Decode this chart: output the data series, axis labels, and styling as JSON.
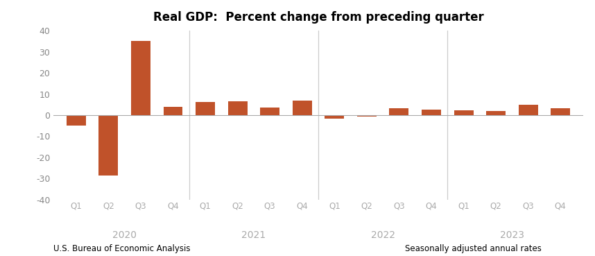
{
  "title": "Real GDP:  Percent change from preceding quarter",
  "values": [
    -5.0,
    -28.7,
    35.3,
    4.0,
    6.3,
    6.7,
    3.5,
    7.0,
    -1.6,
    -0.6,
    3.2,
    2.6,
    2.2,
    2.1,
    4.9,
    3.3
  ],
  "quarters": [
    "Q1",
    "Q2",
    "Q3",
    "Q4",
    "Q1",
    "Q2",
    "Q3",
    "Q4",
    "Q1",
    "Q2",
    "Q3",
    "Q4",
    "Q1",
    "Q2",
    "Q3",
    "Q4"
  ],
  "years": [
    "2020",
    "2021",
    "2022",
    "2023"
  ],
  "year_group_centers": [
    1.5,
    5.5,
    9.5,
    13.5
  ],
  "bar_color": "#C0522A",
  "ylim": [
    -40,
    40
  ],
  "yticks": [
    -40,
    -30,
    -20,
    -10,
    0,
    10,
    20,
    30,
    40
  ],
  "footnote_left": "U.S. Bureau of Economic Analysis",
  "footnote_right": "Seasonally adjusted annual rates",
  "vline_positions": [
    3.5,
    7.5,
    11.5
  ],
  "background_color": "#ffffff",
  "bar_width": 0.6
}
